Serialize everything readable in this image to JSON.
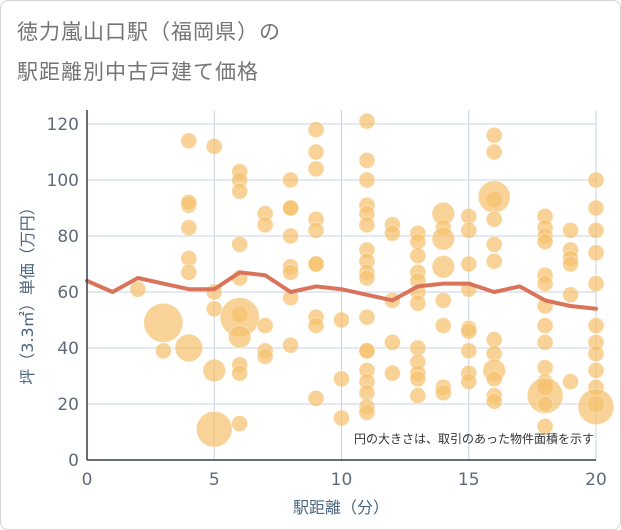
{
  "title": {
    "line1": "徳力嵐山口駅（福岡県）の",
    "line2": "駅距離別中古戸建て価格"
  },
  "chart_data": {
    "type": "scatter",
    "title": "徳力嵐山口駅（福岡県）の駅距離別中古戸建て価格",
    "xlabel": "駅距離（分）",
    "ylabel": "坪（3.3㎡）単価（万円）",
    "xlim": [
      0,
      20
    ],
    "ylim": [
      0,
      125
    ],
    "xticks": [
      "0",
      "5",
      "10",
      "15",
      "20"
    ],
    "yticks": [
      "0",
      "20",
      "40",
      "60",
      "80",
      "100",
      "120"
    ],
    "grid": true,
    "note": "円の大きさは、取引のあった物件面積を示す",
    "colors": {
      "bubble": "#f5c06e",
      "line": "#d9735a",
      "grid": "#c5d3e0"
    },
    "points": [
      [
        2,
        61,
        1
      ],
      [
        3,
        49,
        6
      ],
      [
        3,
        39,
        1
      ],
      [
        4,
        114,
        1
      ],
      [
        4,
        91,
        1
      ],
      [
        4,
        92,
        1
      ],
      [
        4,
        83,
        1
      ],
      [
        4,
        72,
        1
      ],
      [
        4,
        67,
        1
      ],
      [
        4,
        40,
        3
      ],
      [
        5,
        112,
        1
      ],
      [
        5,
        60,
        1
      ],
      [
        5,
        54,
        1
      ],
      [
        5,
        32,
        2
      ],
      [
        5,
        11,
        5
      ],
      [
        6,
        103,
        1
      ],
      [
        6,
        100,
        1
      ],
      [
        6,
        96,
        1
      ],
      [
        6,
        77,
        1
      ],
      [
        6,
        65,
        1
      ],
      [
        6,
        52,
        1
      ],
      [
        6,
        51,
        6
      ],
      [
        6,
        44,
        2
      ],
      [
        6,
        34,
        1
      ],
      [
        6,
        31,
        1
      ],
      [
        6,
        13,
        1
      ],
      [
        7,
        88,
        1
      ],
      [
        7,
        84,
        1
      ],
      [
        7,
        48,
        1
      ],
      [
        7,
        39,
        1
      ],
      [
        7,
        37,
        1
      ],
      [
        8,
        100,
        1
      ],
      [
        8,
        90,
        1
      ],
      [
        8,
        90,
        1
      ],
      [
        8,
        80,
        1
      ],
      [
        8,
        69,
        1
      ],
      [
        8,
        67,
        1
      ],
      [
        8,
        58,
        1
      ],
      [
        8,
        41,
        1
      ],
      [
        9,
        118,
        1
      ],
      [
        9,
        110,
        1
      ],
      [
        9,
        104,
        1
      ],
      [
        9,
        86,
        1
      ],
      [
        9,
        82,
        1
      ],
      [
        9,
        70,
        1
      ],
      [
        9,
        70,
        1
      ],
      [
        9,
        51,
        1
      ],
      [
        9,
        48,
        1
      ],
      [
        9,
        22,
        1
      ],
      [
        10,
        50,
        1
      ],
      [
        10,
        29,
        1
      ],
      [
        10,
        15,
        1
      ],
      [
        11,
        121,
        1
      ],
      [
        11,
        107,
        1
      ],
      [
        11,
        100,
        1
      ],
      [
        11,
        91,
        1
      ],
      [
        11,
        88,
        1
      ],
      [
        11,
        84,
        1
      ],
      [
        11,
        75,
        1
      ],
      [
        11,
        71,
        1
      ],
      [
        11,
        67,
        1
      ],
      [
        11,
        65,
        1
      ],
      [
        11,
        51,
        1
      ],
      [
        11,
        39,
        1
      ],
      [
        11,
        39,
        1
      ],
      [
        11,
        32,
        1
      ],
      [
        11,
        28,
        1
      ],
      [
        11,
        24,
        1
      ],
      [
        11,
        19,
        1
      ],
      [
        11,
        17,
        1
      ],
      [
        12,
        84,
        1
      ],
      [
        12,
        81,
        1
      ],
      [
        12,
        57,
        1
      ],
      [
        12,
        42,
        1
      ],
      [
        12,
        31,
        1
      ],
      [
        13,
        81,
        1
      ],
      [
        13,
        78,
        1
      ],
      [
        13,
        73,
        1
      ],
      [
        13,
        67,
        1
      ],
      [
        13,
        64,
        1
      ],
      [
        13,
        60,
        1
      ],
      [
        13,
        56,
        1
      ],
      [
        13,
        40,
        1
      ],
      [
        13,
        35,
        1
      ],
      [
        13,
        31,
        1
      ],
      [
        13,
        29,
        1
      ],
      [
        13,
        23,
        1
      ],
      [
        14,
        88,
        2
      ],
      [
        14,
        83,
        1
      ],
      [
        14,
        79,
        2
      ],
      [
        14,
        69,
        2
      ],
      [
        14,
        57,
        1
      ],
      [
        14,
        48,
        1
      ],
      [
        14,
        26,
        1
      ],
      [
        14,
        24,
        1
      ],
      [
        15,
        87,
        1
      ],
      [
        15,
        82,
        1
      ],
      [
        15,
        70,
        1
      ],
      [
        15,
        61,
        1
      ],
      [
        15,
        47,
        1
      ],
      [
        15,
        46,
        1
      ],
      [
        15,
        39,
        1
      ],
      [
        15,
        31,
        1
      ],
      [
        15,
        28,
        1
      ],
      [
        16,
        116,
        1
      ],
      [
        16,
        110,
        1
      ],
      [
        16,
        93,
        1
      ],
      [
        16,
        94,
        4
      ],
      [
        16,
        86,
        1
      ],
      [
        16,
        77,
        1
      ],
      [
        16,
        71,
        1
      ],
      [
        16,
        43,
        1
      ],
      [
        16,
        38,
        1
      ],
      [
        16,
        32,
        2
      ],
      [
        16,
        29,
        1
      ],
      [
        16,
        23,
        1
      ],
      [
        16,
        21,
        1
      ],
      [
        18,
        87,
        1
      ],
      [
        18,
        83,
        1
      ],
      [
        18,
        80,
        1
      ],
      [
        18,
        78,
        1
      ],
      [
        18,
        66,
        1
      ],
      [
        18,
        63,
        1
      ],
      [
        18,
        55,
        1
      ],
      [
        18,
        48,
        1
      ],
      [
        18,
        42,
        1
      ],
      [
        18,
        33,
        1
      ],
      [
        18,
        28,
        1
      ],
      [
        18,
        26,
        1
      ],
      [
        18,
        23,
        5
      ],
      [
        18,
        20,
        1
      ],
      [
        18,
        12,
        1
      ],
      [
        19,
        82,
        1
      ],
      [
        19,
        75,
        1
      ],
      [
        19,
        72,
        1
      ],
      [
        19,
        70,
        1
      ],
      [
        19,
        59,
        1
      ],
      [
        19,
        28,
        1
      ],
      [
        20,
        100,
        1
      ],
      [
        20,
        90,
        1
      ],
      [
        20,
        82,
        1
      ],
      [
        20,
        74,
        1
      ],
      [
        20,
        63,
        1
      ],
      [
        20,
        48,
        1
      ],
      [
        20,
        42,
        1
      ],
      [
        20,
        38,
        1
      ],
      [
        20,
        32,
        1
      ],
      [
        20,
        26,
        1
      ],
      [
        20,
        20,
        1
      ],
      [
        20,
        19,
        5
      ]
    ],
    "trend_x": [
      0,
      1,
      2,
      3,
      4,
      5,
      6,
      7,
      8,
      9,
      10,
      11,
      12,
      13,
      14,
      15,
      16,
      17,
      18,
      19,
      20
    ],
    "trend_y": [
      64,
      60,
      65,
      63,
      61,
      61,
      67,
      66,
      60,
      62,
      61,
      59,
      57,
      62,
      63,
      63,
      60,
      62,
      57,
      55,
      54
    ]
  }
}
